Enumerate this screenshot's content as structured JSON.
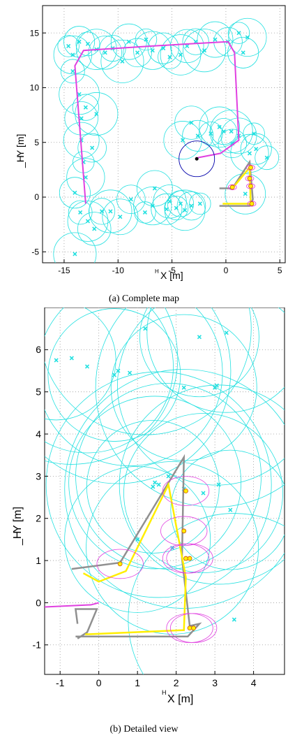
{
  "chart_data": [
    {
      "type": "scatter",
      "caption": "(a) Complete map",
      "xlabel": "X [m]",
      "xlabel_superscript": "H",
      "ylabel": "Y [m]",
      "ylabel_prefix": "_H",
      "xlim": [
        -17,
        5.5
      ],
      "ylim": [
        -6,
        17.5
      ],
      "xticks": [
        -15,
        -10,
        -5,
        0,
        5
      ],
      "yticks": [
        -5,
        0,
        5,
        10,
        15
      ],
      "grid": true,
      "colors": {
        "landmark": "#22e0e0",
        "odometry": "#e040e0",
        "estimate": "#ffee00",
        "ground_truth": "#909090",
        "uncertainty": "#0000aa",
        "pose_x": "#ff0000",
        "pose_y": "#00cc00"
      },
      "series": [
        {
          "label": "landmarks",
          "points": [
            [
              -14.6,
              13.8
            ],
            [
              -14.2,
              13.0
            ],
            [
              -13.6,
              14.2
            ],
            [
              -12.8,
              14.0
            ],
            [
              -12.0,
              13.5
            ],
            [
              -11.2,
              13.2
            ],
            [
              -10.5,
              13.6
            ],
            [
              -9.6,
              12.4
            ],
            [
              -9.0,
              14.2
            ],
            [
              -8.2,
              13.2
            ],
            [
              -7.4,
              14.4
            ],
            [
              -6.8,
              13.4
            ],
            [
              -5.8,
              13.6
            ],
            [
              -5.2,
              12.8
            ],
            [
              -4.2,
              13.0
            ],
            [
              -3.6,
              13.8
            ],
            [
              -2.8,
              14.2
            ],
            [
              -2.0,
              13.4
            ],
            [
              -1.0,
              14.4
            ],
            [
              0.2,
              14.2
            ],
            [
              1.2,
              15.0
            ],
            [
              2.0,
              14.6
            ],
            [
              1.6,
              13.2
            ],
            [
              -14.2,
              11.5
            ],
            [
              -13.6,
              9.4
            ],
            [
              -13.4,
              7.2
            ],
            [
              -13.0,
              8.2
            ],
            [
              -12.0,
              7.6
            ],
            [
              -13.4,
              5.2
            ],
            [
              -12.4,
              4.5
            ],
            [
              -13.2,
              3.2
            ],
            [
              -13.0,
              1.8
            ],
            [
              -14.0,
              0.4
            ],
            [
              -13.5,
              -1.4
            ],
            [
              -12.8,
              -2.2
            ],
            [
              -12.2,
              -2.9
            ],
            [
              -11.5,
              -1.3
            ],
            [
              -10.7,
              -1.3
            ],
            [
              -9.8,
              -1.8
            ],
            [
              -8.8,
              -0.2
            ],
            [
              -7.5,
              -1.4
            ],
            [
              -6.8,
              -0.8
            ],
            [
              -5.5,
              -1.1
            ],
            [
              -4.6,
              -1.0
            ],
            [
              -3.8,
              -1.2
            ],
            [
              -5.2,
              -0.4
            ],
            [
              -4.2,
              -0.6
            ],
            [
              -14.0,
              -5.2
            ],
            [
              -6.6,
              0.8
            ],
            [
              -3.2,
              -0.8
            ],
            [
              -2.4,
              -0.6
            ],
            [
              -4.0,
              5.2
            ],
            [
              -2.6,
              5.6
            ],
            [
              -1.4,
              5.8
            ],
            [
              -0.6,
              6.4
            ],
            [
              -3.2,
              6.8
            ],
            [
              -0.2,
              6.0
            ],
            [
              0.5,
              6.0
            ],
            [
              1.2,
              5.6
            ],
            [
              0.6,
              4.9
            ],
            [
              2.6,
              5.8
            ],
            [
              2.2,
              4.0
            ],
            [
              2.8,
              4.4
            ],
            [
              3.8,
              3.6
            ],
            [
              1.8,
              0.3
            ]
          ]
        },
        {
          "label": "landmark_estimates",
          "points": [
            [
              2.3,
              2.7
            ],
            [
              2.2,
              1.7
            ],
            [
              2.3,
              1.0
            ],
            [
              2.4,
              -0.6
            ],
            [
              0.6,
              0.9
            ]
          ]
        },
        {
          "label": "robot_estimate",
          "points": [
            [
              -2.7,
              3.5
            ]
          ]
        }
      ]
    },
    {
      "type": "scatter",
      "caption": "(b) Detailed view",
      "xlabel": "X [m]",
      "xlabel_superscript": "H",
      "ylabel": "Y [m]",
      "ylabel_prefix": "_H",
      "xlim": [
        -1.4,
        4.8
      ],
      "ylim": [
        -1.7,
        7.0
      ],
      "xticks": [
        -1,
        0,
        1,
        2,
        3,
        4
      ],
      "yticks": [
        -1,
        0,
        1,
        2,
        3,
        4,
        5,
        6
      ],
      "grid": true,
      "series": [
        {
          "label": "landmarks",
          "points": [
            [
              -1.1,
              5.75
            ],
            [
              -0.7,
              5.8
            ],
            [
              -0.3,
              5.6
            ],
            [
              0.4,
              5.4
            ],
            [
              0.5,
              5.5
            ],
            [
              0.8,
              5.45
            ],
            [
              2.2,
              5.1
            ],
            [
              3.0,
              5.1
            ],
            [
              3.05,
              5.15
            ],
            [
              3.3,
              6.4
            ],
            [
              2.6,
              6.3
            ],
            [
              1.2,
              6.5
            ],
            [
              1.45,
              2.85
            ],
            [
              1.4,
              2.75
            ],
            [
              1.55,
              2.8
            ],
            [
              1.8,
              3.0
            ],
            [
              1.0,
              1.5
            ],
            [
              2.2,
              2.7
            ],
            [
              3.1,
              2.8
            ],
            [
              2.7,
              2.6
            ],
            [
              3.4,
              2.2
            ],
            [
              3.5,
              -0.4
            ],
            [
              1.9,
              1.3
            ]
          ]
        },
        {
          "label": "landmark_estimates",
          "points": [
            [
              2.25,
              2.65
            ],
            [
              2.2,
              1.7
            ],
            [
              2.25,
              1.05
            ],
            [
              2.35,
              1.05
            ],
            [
              2.35,
              -0.6
            ],
            [
              2.45,
              -0.6
            ],
            [
              0.55,
              0.92
            ]
          ]
        }
      ],
      "ground_truth_path": [
        [
          -0.55,
          -0.85
        ],
        [
          -0.3,
          -0.7
        ],
        [
          -0.05,
          -0.15
        ],
        [
          -0.6,
          -0.15
        ],
        [
          -0.55,
          -0.5
        ]
      ],
      "ground_truth_path2": [
        [
          -0.6,
          -0.8
        ],
        [
          2.3,
          -0.8
        ],
        [
          2.6,
          -0.5
        ],
        [
          2.35,
          -0.55
        ],
        [
          2.15,
          1.05
        ],
        [
          2.2,
          3.45
        ],
        [
          0.55,
          0.95
        ],
        [
          -0.7,
          0.8
        ]
      ],
      "estimate_path": [
        [
          -0.35,
          -0.75
        ],
        [
          2.2,
          -0.65
        ],
        [
          2.25,
          0.6
        ],
        [
          1.8,
          2.8
        ],
        [
          0.7,
          0.75
        ],
        [
          0.0,
          0.5
        ],
        [
          -0.4,
          0.7
        ]
      ],
      "odometry_path": [
        [
          -1.4,
          -0.1
        ],
        [
          -0.2,
          -0.05
        ],
        [
          0,
          0
        ]
      ]
    }
  ]
}
